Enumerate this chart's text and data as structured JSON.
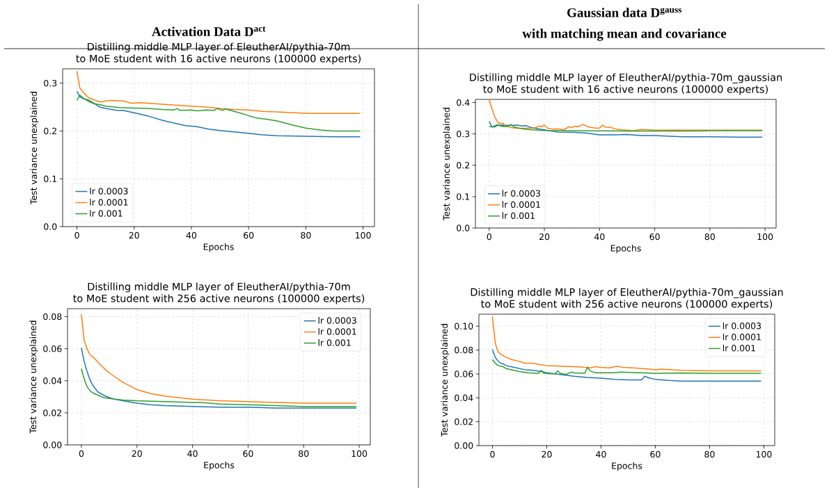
{
  "chart_data": [
    {
      "type": "line",
      "title": "Distilling middle MLP layer of EleutherAI/pythia-70m",
      "subtitle": "to MoE student with 16 active neurons (100000 experts)",
      "xlabel": "Epochs",
      "ylabel": "Test variance unexplained",
      "annotations": [
        "Activation Data D$^{act}$"
      ],
      "xlim": [
        -5,
        104
      ],
      "ylim": [
        0,
        0.33
      ],
      "xticks": [
        0,
        20,
        40,
        60,
        80,
        100
      ],
      "yticks": [
        {
          "value": 0,
          "label": "0.0"
        },
        {
          "value": 0.1,
          "label": "0.1"
        },
        {
          "value": 0.2,
          "label": "0.2"
        },
        {
          "value": 0.3,
          "label": "0.3"
        }
      ],
      "grid": true,
      "legend": "bottom left",
      "series": [
        {
          "name": "lr 0.0003",
          "color": "#1f77b4",
          "x": [
            0,
            1,
            2,
            4,
            6,
            8,
            10,
            14,
            16,
            20,
            25,
            30,
            35,
            38,
            42,
            46,
            50,
            55,
            60,
            65,
            70,
            80,
            90,
            99
          ],
          "values": [
            0.283,
            0.272,
            0.268,
            0.265,
            0.258,
            0.25,
            0.247,
            0.243,
            0.243,
            0.238,
            0.231,
            0.222,
            0.215,
            0.211,
            0.209,
            0.204,
            0.201,
            0.198,
            0.195,
            0.192,
            0.19,
            0.189,
            0.188,
            0.188
          ]
        },
        {
          "name": "lr 0.0001",
          "color": "#ff7f0e",
          "x": [
            0,
            1,
            2,
            3,
            4,
            6,
            8,
            9,
            10,
            13,
            14,
            16,
            19,
            22,
            25,
            30,
            40,
            45,
            50,
            55,
            60,
            65,
            70,
            80,
            90,
            99
          ],
          "values": [
            0.325,
            0.29,
            0.282,
            0.276,
            0.27,
            0.265,
            0.261,
            0.261,
            0.263,
            0.264,
            0.263,
            0.263,
            0.258,
            0.259,
            0.258,
            0.256,
            0.252,
            0.25,
            0.247,
            0.245,
            0.244,
            0.241,
            0.24,
            0.237,
            0.237,
            0.237
          ]
        },
        {
          "name": "lr 0.001",
          "color": "#2ca02c",
          "x": [
            0,
            1,
            2,
            4,
            6,
            8,
            10,
            15,
            20,
            25,
            30,
            34,
            35,
            36,
            40,
            42,
            45,
            48,
            49,
            50,
            51,
            52,
            55,
            58,
            60,
            63,
            67,
            70,
            75,
            80,
            85,
            90,
            99
          ],
          "values": [
            0.264,
            0.275,
            0.27,
            0.262,
            0.257,
            0.255,
            0.252,
            0.249,
            0.248,
            0.247,
            0.245,
            0.244,
            0.247,
            0.243,
            0.244,
            0.242,
            0.244,
            0.243,
            0.247,
            0.245,
            0.243,
            0.246,
            0.241,
            0.236,
            0.232,
            0.227,
            0.224,
            0.221,
            0.213,
            0.206,
            0.202,
            0.2,
            0.2
          ]
        }
      ]
    },
    {
      "type": "line",
      "title": "Distilling middle MLP layer of EleutherAI/pythia-70m_gaussian",
      "subtitle": "to MoE student with 16 active neurons (100000 experts)",
      "xlabel": "Epochs",
      "ylabel": "Test variance unexplained",
      "annotations": [
        "Gaussian data D$^{gauss}$",
        "with matching mean and covariance"
      ],
      "xlim": [
        -5,
        104
      ],
      "ylim": [
        0,
        0.41
      ],
      "xticks": [
        0,
        20,
        40,
        60,
        80,
        100
      ],
      "yticks": [
        {
          "value": 0,
          "label": "0.0"
        },
        {
          "value": 0.1,
          "label": "0.1"
        },
        {
          "value": 0.2,
          "label": "0.2"
        },
        {
          "value": 0.3,
          "label": "0.3"
        },
        {
          "value": 0.4,
          "label": "0.4"
        }
      ],
      "grid": true,
      "legend": "bottom left",
      "series": [
        {
          "name": "lr 0.0003",
          "color": "#1f77b4",
          "x": [
            0,
            1,
            2,
            3,
            5,
            8,
            10,
            12,
            13,
            15,
            18,
            20,
            25,
            30,
            35,
            40,
            45,
            50,
            55,
            60,
            65,
            70,
            80,
            90,
            99
          ],
          "values": [
            0.34,
            0.323,
            0.322,
            0.327,
            0.328,
            0.327,
            0.328,
            0.325,
            0.327,
            0.321,
            0.316,
            0.313,
            0.306,
            0.305,
            0.303,
            0.297,
            0.297,
            0.298,
            0.295,
            0.295,
            0.293,
            0.291,
            0.291,
            0.29,
            0.29
          ]
        },
        {
          "name": "lr 0.0001",
          "color": "#ff7f0e",
          "x": [
            0,
            1,
            2,
            3,
            4,
            5,
            6,
            8,
            10,
            15,
            17,
            18,
            19,
            20,
            21,
            23,
            25,
            27,
            29,
            30,
            31,
            32,
            34,
            36,
            38,
            40,
            41,
            42,
            44,
            46,
            48,
            50,
            52,
            55,
            58,
            60,
            70,
            80,
            90,
            99
          ],
          "values": [
            0.41,
            0.38,
            0.355,
            0.338,
            0.333,
            0.334,
            0.325,
            0.32,
            0.318,
            0.318,
            0.32,
            0.325,
            0.323,
            0.328,
            0.319,
            0.315,
            0.316,
            0.313,
            0.323,
            0.32,
            0.325,
            0.323,
            0.33,
            0.322,
            0.319,
            0.318,
            0.328,
            0.322,
            0.321,
            0.315,
            0.313,
            0.312,
            0.31,
            0.314,
            0.313,
            0.312,
            0.312,
            0.312,
            0.312,
            0.312
          ]
        },
        {
          "name": "lr 0.001",
          "color": "#2ca02c",
          "x": [
            0,
            1,
            2,
            3,
            4,
            6,
            7,
            8,
            9,
            11,
            14,
            20,
            30,
            50,
            70,
            80,
            99
          ],
          "values": [
            0.325,
            0.322,
            0.326,
            0.33,
            0.325,
            0.323,
            0.325,
            0.33,
            0.322,
            0.318,
            0.314,
            0.311,
            0.31,
            0.309,
            0.309,
            0.31,
            0.31
          ]
        }
      ]
    },
    {
      "type": "line",
      "title": "Distilling middle MLP layer of EleutherAI/pythia-70m",
      "subtitle": "to MoE student with 256 active neurons (100000 experts)",
      "xlabel": "Epochs",
      "ylabel": "Test variance unexplained",
      "xlim": [
        -5,
        104
      ],
      "ylim": [
        0,
        0.085
      ],
      "xticks": [
        0,
        20,
        40,
        60,
        80,
        100
      ],
      "yticks": [
        {
          "value": 0,
          "label": "0.00"
        },
        {
          "value": 0.02,
          "label": "0.02"
        },
        {
          "value": 0.04,
          "label": "0.04"
        },
        {
          "value": 0.06,
          "label": "0.06"
        },
        {
          "value": 0.08,
          "label": "0.08"
        }
      ],
      "grid": true,
      "legend": "top right",
      "series": [
        {
          "name": "lr 0.0003",
          "color": "#1f77b4",
          "x": [
            0,
            1,
            2,
            3,
            4,
            5,
            6,
            8,
            10,
            12,
            15,
            20,
            25,
            30,
            40,
            50,
            60,
            70,
            80,
            99
          ],
          "values": [
            0.0605,
            0.052,
            0.046,
            0.041,
            0.0375,
            0.035,
            0.033,
            0.031,
            0.0295,
            0.0285,
            0.0275,
            0.026,
            0.025,
            0.0245,
            0.024,
            0.0235,
            0.0235,
            0.023,
            0.023,
            0.023
          ]
        },
        {
          "name": "lr 0.0001",
          "color": "#ff7f0e",
          "x": [
            0,
            1,
            2,
            3,
            5,
            6,
            8,
            10,
            12,
            15,
            20,
            25,
            30,
            35,
            40,
            45,
            50,
            60,
            70,
            80,
            90,
            99
          ],
          "values": [
            0.0815,
            0.065,
            0.06,
            0.0565,
            0.0535,
            0.0515,
            0.048,
            0.045,
            0.0425,
            0.039,
            0.0345,
            0.032,
            0.0305,
            0.0295,
            0.0285,
            0.028,
            0.0275,
            0.027,
            0.0265,
            0.026,
            0.026,
            0.026
          ]
        },
        {
          "name": "lr 0.001",
          "color": "#2ca02c",
          "x": [
            0,
            1,
            2,
            3,
            4,
            6,
            8,
            10,
            12,
            15,
            20,
            30,
            40,
            43,
            50,
            60,
            70,
            80,
            99
          ],
          "values": [
            0.0475,
            0.041,
            0.0365,
            0.034,
            0.0325,
            0.031,
            0.0295,
            0.029,
            0.0285,
            0.028,
            0.0275,
            0.027,
            0.0265,
            0.0265,
            0.0255,
            0.025,
            0.0245,
            0.024,
            0.024
          ]
        }
      ]
    },
    {
      "type": "line",
      "title": "Distilling middle MLP layer of EleutherAI/pythia-70m_gaussian",
      "subtitle": "to MoE student with 256 active neurons (100000 experts)",
      "xlabel": "Epochs",
      "ylabel": "Test variance unexplained",
      "xlim": [
        -5,
        104
      ],
      "ylim": [
        0,
        0.11
      ],
      "xticks": [
        0,
        20,
        40,
        60,
        80,
        100
      ],
      "yticks": [
        {
          "value": 0,
          "label": "0.00"
        },
        {
          "value": 0.02,
          "label": "0.02"
        },
        {
          "value": 0.04,
          "label": "0.04"
        },
        {
          "value": 0.06,
          "label": "0.06"
        },
        {
          "value": 0.08,
          "label": "0.08"
        },
        {
          "value": 0.1,
          "label": "0.10"
        }
      ],
      "grid": true,
      "legend": "top right",
      "series": [
        {
          "name": "lr 0.0003",
          "color": "#1f77b4",
          "x": [
            0,
            1,
            2,
            3,
            4,
            5,
            8,
            10,
            12,
            15,
            18,
            20,
            25,
            30,
            35,
            40,
            45,
            50,
            55,
            56,
            58,
            60,
            65,
            70,
            80,
            90,
            99
          ],
          "values": [
            0.0805,
            0.074,
            0.071,
            0.069,
            0.0685,
            0.067,
            0.0655,
            0.0645,
            0.0635,
            0.063,
            0.062,
            0.061,
            0.0595,
            0.058,
            0.057,
            0.0565,
            0.0555,
            0.055,
            0.055,
            0.058,
            0.0565,
            0.0555,
            0.0545,
            0.054,
            0.054,
            0.054,
            0.054
          ]
        },
        {
          "name": "lr 0.0001",
          "color": "#ff7f0e",
          "x": [
            0,
            1,
            2,
            3,
            5,
            7,
            10,
            12,
            15,
            17,
            20,
            25,
            30,
            35,
            36,
            38,
            40,
            43,
            46,
            48,
            52,
            55,
            58,
            60,
            62,
            70,
            80,
            90,
            99
          ],
          "values": [
            0.108,
            0.086,
            0.079,
            0.0765,
            0.074,
            0.072,
            0.0705,
            0.069,
            0.069,
            0.068,
            0.067,
            0.0665,
            0.066,
            0.0655,
            0.065,
            0.066,
            0.0655,
            0.065,
            0.0665,
            0.0655,
            0.065,
            0.0645,
            0.064,
            0.0635,
            0.064,
            0.063,
            0.0625,
            0.0625,
            0.0625
          ]
        },
        {
          "name": "lr 0.001",
          "color": "#2ca02c",
          "x": [
            0,
            1,
            2,
            4,
            5,
            8,
            10,
            13,
            17,
            18,
            19,
            23,
            24,
            25,
            27,
            29,
            30,
            34,
            35,
            36,
            38,
            45,
            47,
            55,
            60,
            70,
            80,
            85,
            99
          ],
          "values": [
            0.072,
            0.069,
            0.067,
            0.066,
            0.0645,
            0.063,
            0.062,
            0.061,
            0.0605,
            0.063,
            0.0605,
            0.06,
            0.0625,
            0.0605,
            0.0595,
            0.0615,
            0.061,
            0.0605,
            0.0655,
            0.0625,
            0.061,
            0.061,
            0.0615,
            0.061,
            0.0605,
            0.0608,
            0.0605,
            0.0605,
            0.0605
          ]
        }
      ]
    }
  ]
}
